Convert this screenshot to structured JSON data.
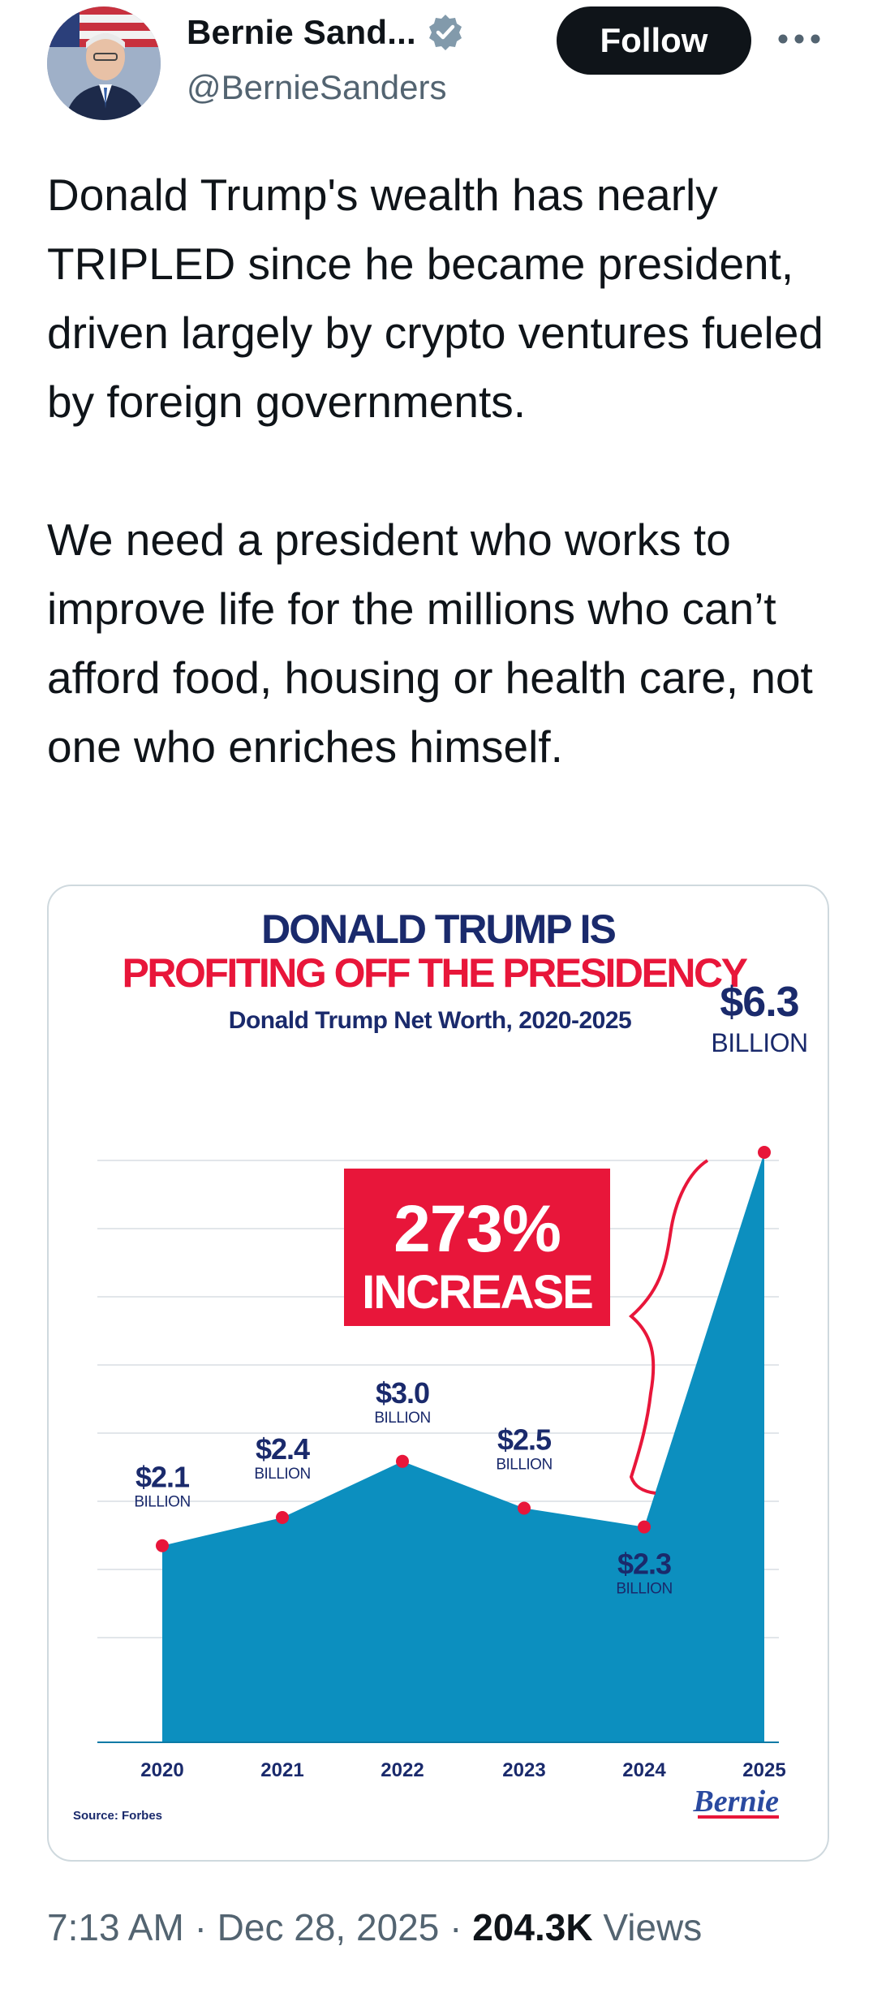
{
  "author": {
    "display_name": "Bernie Sand...",
    "handle": "@BernieSanders",
    "verified": true,
    "avatar_icon": "avatar-photo"
  },
  "actions": {
    "follow_label": "Follow",
    "more_icon": "more-horizontal-icon"
  },
  "tweet": {
    "paragraphs": [
      "Donald Trump's wealth has nearly TRIPLED since he became president, driven largely by crypto ventures fueled by foreign governments.",
      "We need a president who works to improve life for the millions who can’t afford food, housing or health care, not one who enriches himself."
    ]
  },
  "meta": {
    "time": "7:13 AM",
    "separator": "·",
    "date": "Dec 28, 2025",
    "views_count": "204.3K",
    "views_label": "Views"
  },
  "colors": {
    "brand_red": "#e8163a",
    "navy": "#1a2a6c",
    "area_blue": "#0c8fbf",
    "follow_bg": "#0f1419",
    "verified_blue": "#1d9bf0"
  },
  "chart_data": {
    "type": "area",
    "title_line1": "DONALD TRUMP IS",
    "title_line2": "PROFITING OFF THE PRESIDENCY",
    "subtitle": "Donald Trump Net Worth, 2020-2025",
    "unit_label": "BILLION",
    "categories": [
      "2020",
      "2021",
      "2022",
      "2023",
      "2024",
      "2025"
    ],
    "values": [
      2.1,
      2.4,
      3.0,
      2.5,
      2.3,
      6.3
    ],
    "value_labels": [
      "$2.1",
      "$2.4",
      "$3.0",
      "$2.5",
      "$2.3",
      "$6.3"
    ],
    "ylim": [
      0,
      6.3
    ],
    "grid": true,
    "callout_value": "273%",
    "callout_text": "INCREASE",
    "source": "Source: Forbes",
    "logo_text": "Bernie",
    "xlabel": "",
    "ylabel": ""
  }
}
